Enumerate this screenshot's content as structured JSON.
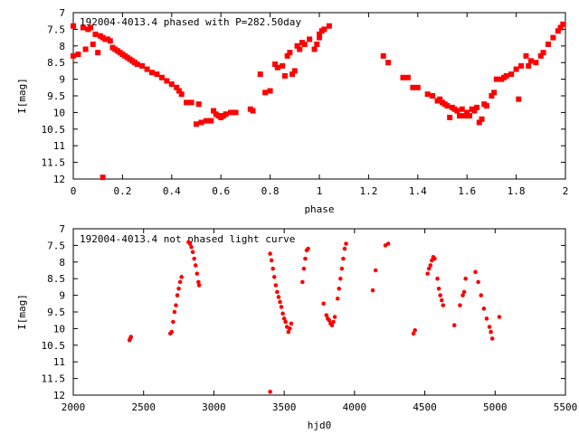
{
  "colors": {
    "points": "#ff0000",
    "axes": "#000000",
    "background": "#ffffff"
  },
  "chart_data": [
    {
      "type": "scatter",
      "title": "192004-4013.4 phased with P=282.50day",
      "xlabel": "phase",
      "ylabel": "I[mag]",
      "xlim": [
        0,
        2
      ],
      "ylim": [
        7,
        12
      ],
      "y_inverted": true,
      "grid": false,
      "x_ticks": [
        0,
        0.2,
        0.4,
        0.6,
        0.8,
        1,
        1.2,
        1.4,
        1.6,
        1.8,
        2
      ],
      "x_tick_labels": [
        "0",
        "0.2",
        "0.4",
        "0.6",
        "0.8",
        "1",
        "1.2",
        "1.4",
        "1.6",
        "1.8",
        "2"
      ],
      "y_ticks": [
        7,
        7.5,
        8,
        8.5,
        9,
        9.5,
        10,
        10.5,
        11,
        11.5,
        12
      ],
      "y_tick_labels": [
        "7",
        "7.5",
        "8",
        "8.5",
        "9",
        "9.5",
        "10",
        "10.5",
        "11",
        "11.5",
        "12"
      ],
      "series": [
        {
          "marker": "star",
          "points": [
            [
              0.0,
              7.4
            ],
            [
              0.0,
              8.3
            ],
            [
              0.02,
              8.25
            ],
            [
              0.04,
              7.45
            ],
            [
              0.05,
              8.1
            ],
            [
              0.06,
              7.5
            ],
            [
              0.07,
              7.45
            ],
            [
              0.08,
              7.95
            ],
            [
              0.09,
              7.65
            ],
            [
              0.1,
              8.2
            ],
            [
              0.11,
              7.7
            ],
            [
              0.12,
              7.75
            ],
            [
              0.13,
              7.8
            ],
            [
              0.14,
              7.8
            ],
            [
              0.15,
              7.85
            ],
            [
              0.12,
              11.95
            ],
            [
              0.16,
              8.05
            ],
            [
              0.17,
              8.1
            ],
            [
              0.18,
              8.15
            ],
            [
              0.19,
              8.2
            ],
            [
              0.2,
              8.25
            ],
            [
              0.21,
              8.3
            ],
            [
              0.22,
              8.35
            ],
            [
              0.23,
              8.4
            ],
            [
              0.24,
              8.45
            ],
            [
              0.25,
              8.5
            ],
            [
              0.26,
              8.55
            ],
            [
              0.28,
              8.6
            ],
            [
              0.3,
              8.7
            ],
            [
              0.32,
              8.8
            ],
            [
              0.34,
              8.85
            ],
            [
              0.36,
              8.95
            ],
            [
              0.38,
              9.05
            ],
            [
              0.4,
              9.15
            ],
            [
              0.42,
              9.25
            ],
            [
              0.43,
              9.35
            ],
            [
              0.44,
              9.45
            ],
            [
              0.46,
              9.7
            ],
            [
              0.48,
              9.7
            ],
            [
              0.5,
              10.35
            ],
            [
              0.51,
              9.75
            ],
            [
              0.52,
              10.3
            ],
            [
              0.54,
              10.25
            ],
            [
              0.56,
              10.25
            ],
            [
              0.57,
              9.95
            ],
            [
              0.58,
              10.05
            ],
            [
              0.59,
              10.1
            ],
            [
              0.6,
              10.15
            ],
            [
              0.61,
              10.1
            ],
            [
              0.62,
              10.05
            ],
            [
              0.64,
              10.0
            ],
            [
              0.66,
              10.0
            ],
            [
              0.72,
              9.9
            ],
            [
              0.73,
              9.95
            ],
            [
              0.76,
              8.85
            ],
            [
              0.78,
              9.4
            ],
            [
              0.8,
              9.35
            ],
            [
              0.82,
              8.55
            ],
            [
              0.83,
              8.65
            ],
            [
              0.85,
              8.6
            ],
            [
              0.86,
              8.9
            ],
            [
              0.87,
              8.3
            ],
            [
              0.88,
              8.2
            ],
            [
              0.89,
              8.85
            ],
            [
              0.9,
              8.75
            ],
            [
              0.91,
              8.0
            ],
            [
              0.92,
              8.1
            ],
            [
              0.93,
              7.9
            ],
            [
              0.94,
              7.95
            ],
            [
              0.96,
              7.8
            ],
            [
              0.98,
              8.1
            ],
            [
              0.99,
              7.95
            ],
            [
              1.0,
              7.75
            ],
            [
              1.0,
              7.65
            ],
            [
              1.01,
              7.55
            ],
            [
              1.02,
              7.5
            ],
            [
              1.04,
              7.4
            ],
            [
              1.26,
              8.3
            ],
            [
              1.28,
              8.5
            ],
            [
              1.34,
              8.95
            ],
            [
              1.36,
              8.95
            ],
            [
              1.38,
              9.25
            ],
            [
              1.4,
              9.25
            ],
            [
              1.44,
              9.45
            ],
            [
              1.46,
              9.5
            ],
            [
              1.48,
              9.65
            ],
            [
              1.49,
              9.6
            ],
            [
              1.5,
              9.7
            ],
            [
              1.51,
              9.75
            ],
            [
              1.52,
              9.8
            ],
            [
              1.53,
              10.15
            ],
            [
              1.54,
              9.85
            ],
            [
              1.55,
              9.9
            ],
            [
              1.56,
              9.95
            ],
            [
              1.57,
              10.1
            ],
            [
              1.58,
              9.9
            ],
            [
              1.59,
              10.1
            ],
            [
              1.6,
              10.0
            ],
            [
              1.61,
              10.1
            ],
            [
              1.62,
              9.9
            ],
            [
              1.63,
              9.95
            ],
            [
              1.64,
              9.85
            ],
            [
              1.65,
              10.3
            ],
            [
              1.66,
              10.2
            ],
            [
              1.67,
              9.75
            ],
            [
              1.68,
              9.8
            ],
            [
              1.7,
              9.5
            ],
            [
              1.71,
              9.4
            ],
            [
              1.72,
              9.0
            ],
            [
              1.74,
              9.0
            ],
            [
              1.75,
              8.95
            ],
            [
              1.76,
              8.9
            ],
            [
              1.78,
              8.85
            ],
            [
              1.8,
              8.7
            ],
            [
              1.81,
              9.6
            ],
            [
              1.82,
              8.6
            ],
            [
              1.84,
              8.3
            ],
            [
              1.85,
              8.6
            ],
            [
              1.86,
              8.45
            ],
            [
              1.88,
              8.5
            ],
            [
              1.9,
              8.3
            ],
            [
              1.91,
              8.2
            ],
            [
              1.93,
              7.95
            ],
            [
              1.95,
              7.75
            ],
            [
              1.97,
              7.55
            ],
            [
              1.98,
              7.45
            ],
            [
              1.99,
              7.35
            ]
          ]
        }
      ]
    },
    {
      "type": "scatter",
      "title": "192004-4013.4 not phased light curve",
      "xlabel": "hjd0",
      "ylabel": "I[mag]",
      "xlim": [
        2000,
        5500
      ],
      "ylim": [
        7,
        12
      ],
      "y_inverted": true,
      "grid": false,
      "x_ticks": [
        2000,
        2500,
        3000,
        3500,
        4000,
        4500,
        5000,
        5500
      ],
      "x_tick_labels": [
        "2000",
        "2500",
        "3000",
        "3500",
        "4000",
        "4500",
        "5000",
        "5500"
      ],
      "y_ticks": [
        7,
        7.5,
        8,
        8.5,
        9,
        9.5,
        10,
        10.5,
        11,
        11.5,
        12
      ],
      "y_tick_labels": [
        "7",
        "7.5",
        "8",
        "8.5",
        "9",
        "9.5",
        "10",
        "10.5",
        "11",
        "11.5",
        "12"
      ],
      "series": [
        {
          "marker": "dot",
          "points": [
            [
              2400,
              10.35
            ],
            [
              2405,
              10.3
            ],
            [
              2410,
              10.25
            ],
            [
              2690,
              10.15
            ],
            [
              2700,
              10.1
            ],
            [
              2710,
              9.8
            ],
            [
              2720,
              9.5
            ],
            [
              2730,
              9.3
            ],
            [
              2740,
              9.0
            ],
            [
              2750,
              8.8
            ],
            [
              2760,
              8.6
            ],
            [
              2770,
              8.45
            ],
            [
              2820,
              7.4
            ],
            [
              2830,
              7.45
            ],
            [
              2840,
              7.55
            ],
            [
              2850,
              7.7
            ],
            [
              2860,
              7.9
            ],
            [
              2870,
              8.1
            ],
            [
              2880,
              8.35
            ],
            [
              2890,
              8.6
            ],
            [
              2895,
              8.7
            ],
            [
              3400,
              7.75
            ],
            [
              3410,
              7.95
            ],
            [
              3420,
              8.2
            ],
            [
              3430,
              8.45
            ],
            [
              3440,
              8.7
            ],
            [
              3450,
              8.9
            ],
            [
              3460,
              9.05
            ],
            [
              3470,
              9.2
            ],
            [
              3480,
              9.35
            ],
            [
              3490,
              9.55
            ],
            [
              3500,
              9.7
            ],
            [
              3510,
              9.8
            ],
            [
              3520,
              9.95
            ],
            [
              3530,
              10.1
            ],
            [
              3540,
              10.0
            ],
            [
              3550,
              9.85
            ],
            [
              3400,
              11.9
            ],
            [
              3630,
              8.6
            ],
            [
              3640,
              8.2
            ],
            [
              3650,
              7.9
            ],
            [
              3660,
              7.65
            ],
            [
              3670,
              7.6
            ],
            [
              3780,
              9.25
            ],
            [
              3800,
              9.6
            ],
            [
              3810,
              9.7
            ],
            [
              3820,
              9.75
            ],
            [
              3830,
              9.85
            ],
            [
              3840,
              9.9
            ],
            [
              3850,
              9.8
            ],
            [
              3860,
              9.65
            ],
            [
              3880,
              9.1
            ],
            [
              3890,
              8.8
            ],
            [
              3900,
              8.5
            ],
            [
              3910,
              8.2
            ],
            [
              3920,
              7.9
            ],
            [
              3930,
              7.6
            ],
            [
              3940,
              7.45
            ],
            [
              4130,
              8.85
            ],
            [
              4150,
              8.25
            ],
            [
              4220,
              7.5
            ],
            [
              4240,
              7.45
            ],
            [
              4420,
              10.15
            ],
            [
              4430,
              10.05
            ],
            [
              4520,
              8.35
            ],
            [
              4530,
              8.2
            ],
            [
              4540,
              8.1
            ],
            [
              4550,
              7.95
            ],
            [
              4560,
              7.85
            ],
            [
              4570,
              7.9
            ],
            [
              4590,
              8.5
            ],
            [
              4600,
              8.8
            ],
            [
              4610,
              9.0
            ],
            [
              4620,
              9.15
            ],
            [
              4630,
              9.3
            ],
            [
              4710,
              9.9
            ],
            [
              4750,
              9.3
            ],
            [
              4770,
              9.0
            ],
            [
              4780,
              8.9
            ],
            [
              4790,
              8.5
            ],
            [
              4860,
              8.3
            ],
            [
              4880,
              8.6
            ],
            [
              4900,
              9.0
            ],
            [
              4920,
              9.4
            ],
            [
              4940,
              9.7
            ],
            [
              4960,
              9.95
            ],
            [
              4970,
              10.1
            ],
            [
              4980,
              10.3
            ],
            [
              5030,
              9.65
            ]
          ]
        }
      ]
    }
  ]
}
